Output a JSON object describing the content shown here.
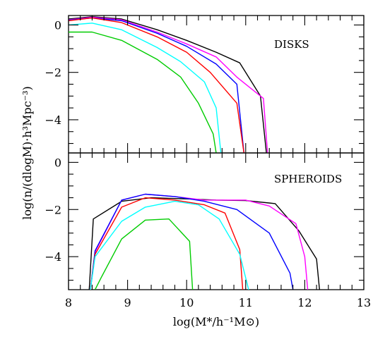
{
  "chart_data": [
    {
      "type": "line",
      "panel_label": "DISKS",
      "xlim": [
        8,
        13
      ],
      "ylim": [
        -5.4,
        0.4
      ],
      "x_ticks": [
        8,
        9,
        10,
        11,
        12,
        13
      ],
      "y_ticks": [
        0,
        -2,
        -4
      ],
      "y_tick_labels": [
        "0",
        "−2",
        "−4"
      ],
      "series": [
        {
          "color": "#000000",
          "points": [
            [
              8.0,
              0.25
            ],
            [
              8.4,
              0.35
            ],
            [
              8.9,
              0.25
            ],
            [
              9.5,
              -0.2
            ],
            [
              10.0,
              -0.65
            ],
            [
              10.5,
              -1.15
            ],
            [
              10.9,
              -1.6
            ],
            [
              11.25,
              -3.0
            ],
            [
              11.35,
              -5.4
            ]
          ]
        },
        {
          "color": "#ff00ff",
          "points": [
            [
              8.0,
              0.22
            ],
            [
              8.4,
              0.33
            ],
            [
              8.9,
              0.22
            ],
            [
              9.5,
              -0.3
            ],
            [
              10.0,
              -0.8
            ],
            [
              10.5,
              -1.35
            ],
            [
              10.85,
              -2.2
            ],
            [
              11.3,
              -3.1
            ],
            [
              11.37,
              -5.4
            ]
          ]
        },
        {
          "color": "#0000ff",
          "points": [
            [
              8.0,
              0.2
            ],
            [
              8.4,
              0.3
            ],
            [
              8.9,
              0.18
            ],
            [
              9.5,
              -0.35
            ],
            [
              10.0,
              -0.9
            ],
            [
              10.5,
              -1.65
            ],
            [
              10.85,
              -2.5
            ],
            [
              10.97,
              -5.4
            ]
          ]
        },
        {
          "color": "#ff0000",
          "points": [
            [
              8.0,
              0.18
            ],
            [
              8.4,
              0.3
            ],
            [
              8.9,
              0.1
            ],
            [
              9.5,
              -0.5
            ],
            [
              10.0,
              -1.15
            ],
            [
              10.4,
              -2.0
            ],
            [
              10.85,
              -3.3
            ],
            [
              10.97,
              -5.4
            ]
          ]
        },
        {
          "color": "#00ffff",
          "points": [
            [
              8.0,
              0.0
            ],
            [
              8.4,
              0.08
            ],
            [
              8.9,
              -0.2
            ],
            [
              9.5,
              -0.95
            ],
            [
              9.9,
              -1.55
            ],
            [
              10.3,
              -2.4
            ],
            [
              10.5,
              -3.5
            ],
            [
              10.58,
              -5.4
            ]
          ]
        },
        {
          "color": "#00cc00",
          "points": [
            [
              8.0,
              -0.3
            ],
            [
              8.4,
              -0.3
            ],
            [
              8.9,
              -0.65
            ],
            [
              9.5,
              -1.45
            ],
            [
              9.9,
              -2.2
            ],
            [
              10.2,
              -3.3
            ],
            [
              10.45,
              -4.6
            ],
            [
              10.5,
              -5.4
            ]
          ]
        }
      ]
    },
    {
      "type": "line",
      "panel_label": "SPHEROIDS",
      "xlim": [
        8,
        13
      ],
      "ylim": [
        -5.4,
        0.4
      ],
      "x_ticks": [
        8,
        9,
        10,
        11,
        12,
        13
      ],
      "y_ticks": [
        0,
        -2,
        -4
      ],
      "y_tick_labels": [
        "0",
        "−2",
        "−4"
      ],
      "series": [
        {
          "color": "#000000",
          "points": [
            [
              8.35,
              -5.4
            ],
            [
              8.42,
              -2.4
            ],
            [
              8.9,
              -1.65
            ],
            [
              9.4,
              -1.5
            ],
            [
              10.0,
              -1.55
            ],
            [
              10.5,
              -1.6
            ],
            [
              11.0,
              -1.62
            ],
            [
              11.5,
              -1.75
            ],
            [
              11.9,
              -2.9
            ],
            [
              12.2,
              -4.1
            ],
            [
              12.25,
              -5.4
            ]
          ]
        },
        {
          "color": "#ff00ff",
          "points": [
            [
              8.37,
              -5.4
            ],
            [
              8.45,
              -3.8
            ],
            [
              8.9,
              -1.6
            ],
            [
              9.3,
              -1.35
            ],
            [
              9.8,
              -1.45
            ],
            [
              10.3,
              -1.6
            ],
            [
              11.0,
              -1.6
            ],
            [
              11.4,
              -1.85
            ],
            [
              11.85,
              -2.6
            ],
            [
              12.0,
              -4.0
            ],
            [
              12.05,
              -5.4
            ]
          ]
        },
        {
          "color": "#0000ff",
          "points": [
            [
              8.37,
              -5.4
            ],
            [
              8.45,
              -3.75
            ],
            [
              8.9,
              -1.6
            ],
            [
              9.3,
              -1.35
            ],
            [
              9.8,
              -1.45
            ],
            [
              10.3,
              -1.65
            ],
            [
              10.85,
              -2.0
            ],
            [
              11.4,
              -3.0
            ],
            [
              11.75,
              -4.7
            ],
            [
              11.8,
              -5.4
            ]
          ]
        },
        {
          "color": "#ff0000",
          "points": [
            [
              8.37,
              -5.4
            ],
            [
              8.45,
              -3.9
            ],
            [
              8.9,
              -1.9
            ],
            [
              9.3,
              -1.5
            ],
            [
              9.8,
              -1.6
            ],
            [
              10.3,
              -1.8
            ],
            [
              10.65,
              -2.15
            ],
            [
              10.9,
              -3.7
            ],
            [
              10.95,
              -5.4
            ]
          ]
        },
        {
          "color": "#00ffff",
          "points": [
            [
              8.37,
              -5.4
            ],
            [
              8.45,
              -4.0
            ],
            [
              8.9,
              -2.5
            ],
            [
              9.3,
              -1.9
            ],
            [
              9.8,
              -1.65
            ],
            [
              10.2,
              -1.8
            ],
            [
              10.55,
              -2.4
            ],
            [
              10.9,
              -3.9
            ],
            [
              11.05,
              -5.4
            ]
          ]
        },
        {
          "color": "#00cc00",
          "points": [
            [
              8.45,
              -5.4
            ],
            [
              8.55,
              -4.9
            ],
            [
              8.9,
              -3.25
            ],
            [
              9.3,
              -2.45
            ],
            [
              9.7,
              -2.4
            ],
            [
              10.05,
              -3.35
            ],
            [
              10.1,
              -5.4
            ]
          ]
        }
      ]
    }
  ],
  "axes": {
    "xlabel": "log(M*/h⁻¹M⊙)",
    "ylabel": "log(n/(dlogM)·h³Mpc⁻³)",
    "x_tick_labels": [
      "8",
      "9",
      "10",
      "11",
      "12",
      "13"
    ]
  }
}
